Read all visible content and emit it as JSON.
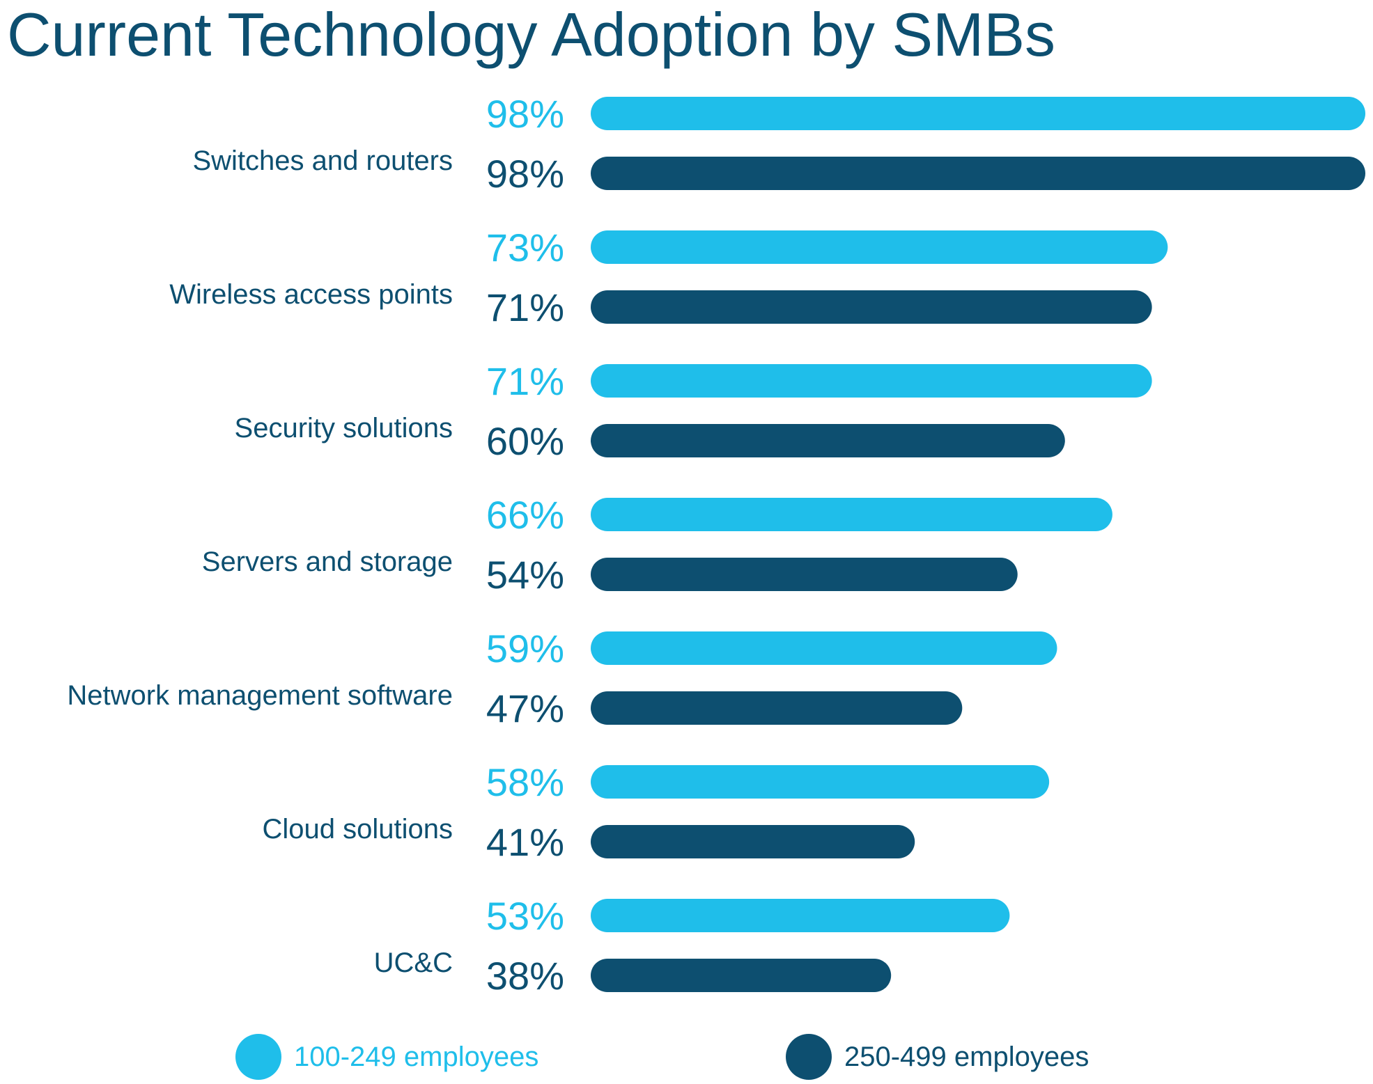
{
  "chart_data": {
    "type": "bar",
    "orientation": "horizontal",
    "title": "Current Technology Adoption by SMBs",
    "categories": [
      "Switches and routers",
      "Wireless access points",
      "Security solutions",
      "Servers and storage",
      "Network management software",
      "Cloud solutions",
      "UC&C"
    ],
    "series": [
      {
        "name": "100-249 employees",
        "color": "#1fbeea",
        "values": [
          98,
          73,
          71,
          66,
          59,
          58,
          53
        ],
        "labels": [
          "98%",
          "73%",
          "71%",
          "66%",
          "59%",
          "58%",
          "53%"
        ]
      },
      {
        "name": "250-499 employees",
        "color": "#0d4f70",
        "values": [
          98,
          71,
          60,
          54,
          47,
          41,
          38
        ],
        "labels": [
          "98%",
          "71%",
          "60%",
          "54%",
          "47%",
          "41%",
          "38%"
        ]
      }
    ],
    "xlim": [
      0,
      98
    ],
    "grid": false,
    "legend_position": "bottom",
    "text_color": "#0d4f70"
  }
}
